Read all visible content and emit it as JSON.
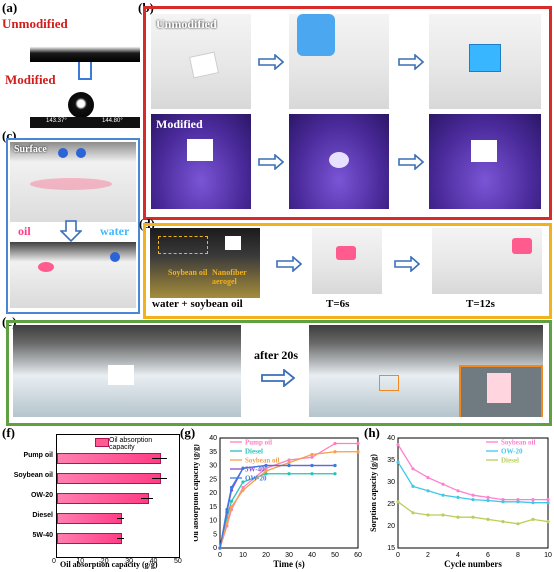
{
  "panels": {
    "a": {
      "label": "(a)",
      "unmodified": "Unmodified",
      "modified": "Modified",
      "angle_left": "143.37°",
      "angle_right": "144.80°"
    },
    "b": {
      "label": "(b)",
      "unmodified": "Unmodified",
      "modified": "Modified"
    },
    "c": {
      "label": "(c)",
      "surface": "Surface",
      "oil": "oil",
      "water": "water"
    },
    "d": {
      "label": "(d)",
      "soybean_oil": "Soybean oil",
      "aerogel": "Nanofiber aerogel",
      "caption": "water + soybean oil",
      "t1": "T=6s",
      "t2": "T=12s"
    },
    "e": {
      "label": "(e)",
      "after": "after 20s"
    },
    "f": {
      "label": "(f)",
      "legend": "Oil absorption capacity",
      "xlabel": "Oil absorption capacity (g/g)"
    },
    "g": {
      "label": "(g)",
      "xlabel": "Time (s)",
      "ylabel": "Oil absorption capacity (g/g)"
    },
    "h": {
      "label": "(h)",
      "xlabel": "Cycle numbers",
      "ylabel": "Sorption capacity (g/g)"
    }
  },
  "colors": {
    "red_frame": "#d92a2a",
    "blue_frame": "#4b86d6",
    "yellow_frame": "#f2b21e",
    "green_frame": "#5fa043",
    "accent_pink": "#ff3d86"
  },
  "chart_data": [
    {
      "type": "bar",
      "categories": [
        "Pump oil",
        "Soybean oil",
        "OW-20",
        "Diesel",
        "5W-40"
      ],
      "values": [
        42,
        42,
        37,
        26,
        26
      ],
      "errors": [
        3,
        3,
        2.5,
        1.5,
        1.5
      ],
      "xlim": [
        0,
        50
      ],
      "xticks": [
        "0",
        "10",
        "20",
        "30",
        "40",
        "50"
      ],
      "series": [
        {
          "name": "Oil absorption capacity"
        }
      ]
    },
    {
      "type": "line",
      "xlim": [
        0,
        60
      ],
      "ylim": [
        0,
        40
      ],
      "xticks": [
        "0",
        "10",
        "20",
        "30",
        "40",
        "50",
        "60"
      ],
      "yticks": [
        "0",
        "5",
        "10",
        "15",
        "20",
        "25",
        "30",
        "35",
        "40"
      ],
      "series": [
        {
          "name": "Pump oil",
          "color": "#ff7fbf",
          "x": [
            0,
            3,
            5,
            10,
            20,
            30,
            40,
            50,
            60
          ],
          "y": [
            0,
            8,
            14,
            22,
            29,
            32,
            33,
            38,
            38
          ]
        },
        {
          "name": "Diesel",
          "color": "#25c4b8",
          "x": [
            0,
            3,
            5,
            10,
            20,
            30,
            40,
            50
          ],
          "y": [
            0,
            11,
            17,
            24,
            27,
            27,
            27,
            27
          ]
        },
        {
          "name": "Soybean oil",
          "color": "#f5a04a",
          "x": [
            0,
            3,
            5,
            10,
            20,
            30,
            40,
            50,
            60
          ],
          "y": [
            0,
            9,
            15,
            21,
            28,
            31,
            34,
            35,
            35
          ]
        },
        {
          "name": "5W-40",
          "color": "#8a4fd0",
          "x": [
            0,
            3,
            5,
            10,
            20,
            30,
            40,
            50
          ],
          "y": [
            0,
            13,
            21,
            29,
            30,
            30,
            30,
            30
          ]
        },
        {
          "name": "OW-20",
          "color": "#3e7be0",
          "x": [
            0,
            3,
            5,
            10,
            20,
            30,
            40,
            50
          ],
          "y": [
            0,
            14,
            22,
            29,
            30,
            30,
            30,
            30
          ]
        }
      ]
    },
    {
      "type": "line",
      "xlim": [
        0,
        10
      ],
      "ylim": [
        15,
        40
      ],
      "xticks": [
        "0",
        "2",
        "4",
        "6",
        "8",
        "10"
      ],
      "yticks": [
        "15",
        "20",
        "25",
        "30",
        "35",
        "40"
      ],
      "series": [
        {
          "name": "Soybean oil",
          "color": "#ff7fd0",
          "x": [
            0,
            1,
            2,
            3,
            4,
            5,
            6,
            7,
            8,
            9,
            10
          ],
          "y": [
            38.5,
            33,
            31,
            29.5,
            28,
            27,
            26.5,
            26,
            26,
            26,
            26
          ]
        },
        {
          "name": "OW-20",
          "color": "#40c8e8",
          "x": [
            0,
            1,
            2,
            3,
            4,
            5,
            6,
            7,
            8,
            9,
            10
          ],
          "y": [
            34.5,
            29,
            28,
            27,
            26.5,
            26,
            25.8,
            25.5,
            25.5,
            25.3,
            25.3
          ]
        },
        {
          "name": "Diesel",
          "color": "#b8cf5a",
          "x": [
            0,
            1,
            2,
            3,
            4,
            5,
            6,
            7,
            8,
            9,
            10
          ],
          "y": [
            25.5,
            23,
            22.5,
            22.5,
            22,
            22,
            21.5,
            21,
            20.5,
            21.5,
            21
          ]
        }
      ]
    }
  ]
}
